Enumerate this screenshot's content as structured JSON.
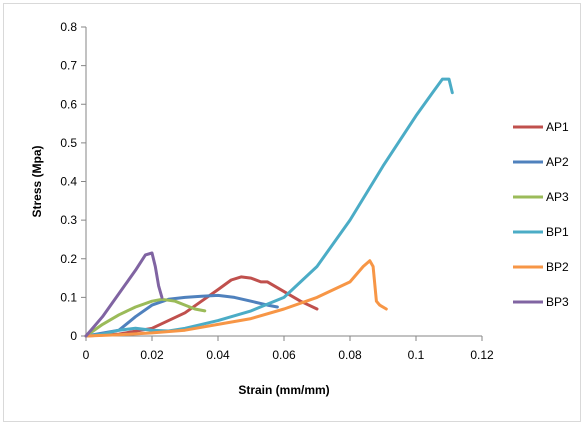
{
  "chart_data": {
    "type": "line",
    "title": "",
    "xlabel": "Strain (mm/mm)",
    "ylabel": "Stress (Mpa)",
    "xlim": [
      0,
      0.12
    ],
    "ylim": [
      0,
      0.8
    ],
    "xticks": [
      0,
      0.02,
      0.04,
      0.06,
      0.08,
      0.1,
      0.12
    ],
    "xtick_labels": [
      "0",
      "0.02",
      "0.04",
      "0.06",
      "0.08",
      "0.1",
      "0.12"
    ],
    "yticks": [
      0,
      0.1,
      0.2,
      0.3,
      0.4,
      0.5,
      0.6,
      0.7,
      0.8
    ],
    "ytick_labels": [
      "0",
      "0.1",
      "0.2",
      "0.3",
      "0.4",
      "0.5",
      "0.6",
      "0.7",
      "0.8"
    ],
    "grid": false,
    "legend_position": "right",
    "series": [
      {
        "name": "AP1",
        "color": "#C0504D",
        "x": [
          0,
          0.01,
          0.02,
          0.03,
          0.035,
          0.04,
          0.044,
          0.047,
          0.05,
          0.053,
          0.055,
          0.06,
          0.065,
          0.07
        ],
        "y": [
          0,
          0.005,
          0.02,
          0.06,
          0.09,
          0.12,
          0.145,
          0.153,
          0.15,
          0.14,
          0.14,
          0.115,
          0.09,
          0.07
        ]
      },
      {
        "name": "AP2",
        "color": "#4F81BD",
        "x": [
          0,
          0.01,
          0.015,
          0.02,
          0.025,
          0.03,
          0.035,
          0.04,
          0.045,
          0.05,
          0.055,
          0.058
        ],
        "y": [
          0,
          0.015,
          0.05,
          0.08,
          0.095,
          0.1,
          0.103,
          0.105,
          0.1,
          0.09,
          0.08,
          0.075
        ]
      },
      {
        "name": "AP3",
        "color": "#9BBB59",
        "x": [
          0,
          0.005,
          0.01,
          0.015,
          0.02,
          0.023,
          0.027,
          0.03,
          0.033,
          0.036
        ],
        "y": [
          0,
          0.03,
          0.055,
          0.075,
          0.09,
          0.095,
          0.09,
          0.08,
          0.07,
          0.065
        ]
      },
      {
        "name": "BP1",
        "color": "#4BACC6",
        "x": [
          0,
          0.005,
          0.01,
          0.015,
          0.02,
          0.025,
          0.03,
          0.04,
          0.05,
          0.06,
          0.07,
          0.08,
          0.09,
          0.1,
          0.105,
          0.108,
          0.11,
          0.111
        ],
        "y": [
          0,
          0.005,
          0.015,
          0.02,
          0.015,
          0.013,
          0.02,
          0.04,
          0.065,
          0.1,
          0.18,
          0.3,
          0.44,
          0.57,
          0.63,
          0.665,
          0.665,
          0.63
        ]
      },
      {
        "name": "BP2",
        "color": "#F79646",
        "x": [
          0,
          0.01,
          0.02,
          0.03,
          0.04,
          0.05,
          0.06,
          0.07,
          0.08,
          0.084,
          0.086,
          0.087,
          0.088,
          0.089,
          0.091
        ],
        "y": [
          0,
          0.003,
          0.008,
          0.015,
          0.03,
          0.045,
          0.07,
          0.1,
          0.14,
          0.18,
          0.195,
          0.18,
          0.09,
          0.08,
          0.07
        ]
      },
      {
        "name": "BP3",
        "color": "#8064A2",
        "x": [
          0,
          0.005,
          0.01,
          0.015,
          0.018,
          0.02,
          0.021,
          0.022,
          0.023
        ],
        "y": [
          0,
          0.05,
          0.11,
          0.17,
          0.21,
          0.215,
          0.18,
          0.13,
          0.1
        ]
      }
    ]
  }
}
